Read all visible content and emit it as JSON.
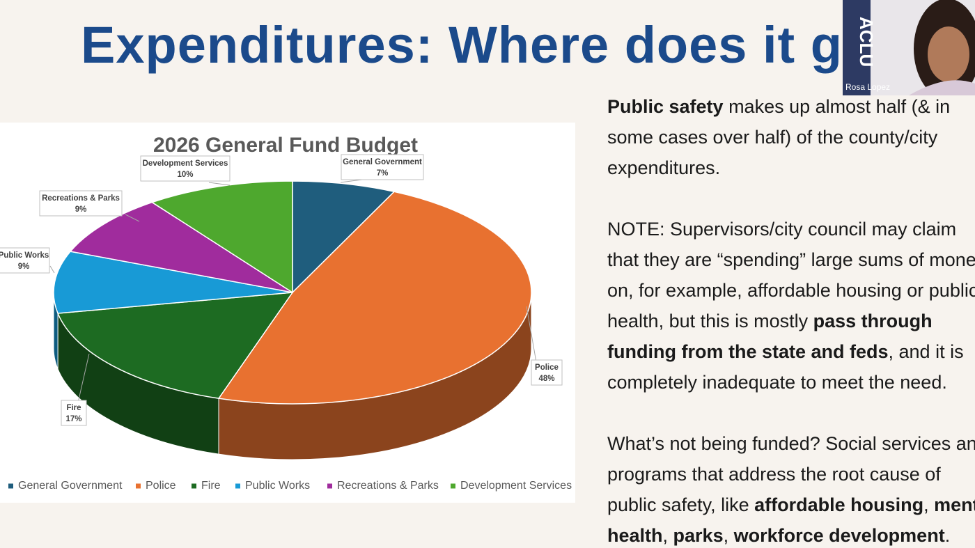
{
  "slide": {
    "title": "Expenditures: Where does it go",
    "paragraphs": [
      [
        [
          {
            "text": "Public safety",
            "bold": true
          },
          {
            "text": " makes up almost half (& in",
            "bold": false
          }
        ],
        [
          {
            "text": "some cases over half) of the county/city",
            "bold": false
          }
        ],
        [
          {
            "text": "expenditures.",
            "bold": false
          }
        ]
      ],
      [
        [
          {
            "text": "NOTE",
            "bold": false
          },
          {
            "text": ": Supervisors/city council may claim",
            "bold": false
          }
        ],
        [
          {
            "text": "that they are “spending” large sums of money",
            "bold": false
          }
        ],
        [
          {
            "text": "on, for example, affordable housing or public",
            "bold": false
          }
        ],
        [
          {
            "text": "health, but this is mostly ",
            "bold": false
          },
          {
            "text": "pass through",
            "bold": true
          }
        ],
        [
          {
            "text": "funding from the state and feds",
            "bold": true
          },
          {
            "text": ", and it is",
            "bold": false
          }
        ],
        [
          {
            "text": "completely inadequate to meet the need.",
            "bold": false
          }
        ]
      ],
      [
        [
          {
            "text": "What’s not being funded? Social services and",
            "bold": false
          }
        ],
        [
          {
            "text": "programs that address the root cause of",
            "bold": false
          }
        ],
        [
          {
            "text": "public safety, like ",
            "bold": false
          },
          {
            "text": "affordable housing",
            "bold": true
          },
          {
            "text": ", ",
            "bold": false
          },
          {
            "text": "mental",
            "bold": true
          }
        ],
        [
          {
            "text": "health",
            "bold": true
          },
          {
            "text": ", ",
            "bold": false
          },
          {
            "text": "parks",
            "bold": true
          },
          {
            "text": ", ",
            "bold": false
          },
          {
            "text": "workforce development",
            "bold": true
          },
          {
            "text": ".",
            "bold": false
          }
        ]
      ]
    ]
  },
  "video": {
    "name": "Rosa Lopez",
    "logo": "ACLU"
  },
  "chart_data": {
    "type": "pie",
    "title": "2026 General Fund Budget",
    "categories": [
      "General Government",
      "Police",
      "Fire",
      "Public Works",
      "Recreations & Parks",
      "Development Services"
    ],
    "values": [
      7,
      48,
      17,
      9,
      9,
      10
    ],
    "value_labels": [
      "7%",
      "48%",
      "17%",
      "9%",
      "9%",
      "10%"
    ],
    "colors": [
      "#1f5d7d",
      "#e87130",
      "#1d6b22",
      "#189ad6",
      "#a02c9d",
      "#4ea82e"
    ],
    "legend": "bottom"
  }
}
